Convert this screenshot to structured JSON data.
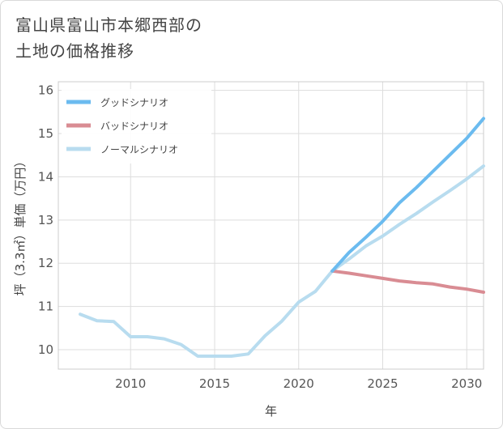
{
  "title_line1": "富山県富山市本郷西部の",
  "title_line2": "土地の価格推移",
  "chart_data": {
    "type": "line",
    "xlabel": "年",
    "ylabel": "坪（3.3㎡）単価（万円）",
    "xlim": [
      2005.7,
      2031
    ],
    "ylim": [
      9.55,
      16.2
    ],
    "xticks": [
      2010,
      2015,
      2020,
      2025,
      2030
    ],
    "yticks": [
      10,
      11,
      12,
      13,
      14,
      15,
      16
    ],
    "grid": true,
    "legend_position": "top-left",
    "series": [
      {
        "name": "グッドシナリオ",
        "color": "#6bbbef",
        "x": [
          2022,
          2023,
          2024,
          2025,
          2026,
          2027,
          2028,
          2029,
          2030,
          2031
        ],
        "y": [
          11.82,
          12.25,
          12.6,
          12.97,
          13.4,
          13.75,
          14.13,
          14.51,
          14.89,
          15.35
        ]
      },
      {
        "name": "バッドシナリオ",
        "color": "#d98c93",
        "x": [
          2022,
          2023,
          2024,
          2025,
          2026,
          2027,
          2028,
          2029,
          2030,
          2031
        ],
        "y": [
          11.82,
          11.77,
          11.71,
          11.65,
          11.59,
          11.55,
          11.52,
          11.45,
          11.4,
          11.33
        ]
      },
      {
        "name": "ノーマルシナリオ",
        "color": "#b8dcef",
        "x": [
          2007,
          2008,
          2009,
          2010,
          2011,
          2012,
          2013,
          2014,
          2015,
          2016,
          2017,
          2018,
          2019,
          2020,
          2021,
          2022,
          2023,
          2024,
          2025,
          2026,
          2027,
          2028,
          2029,
          2030,
          2031
        ],
        "y": [
          10.82,
          10.67,
          10.65,
          10.3,
          10.3,
          10.25,
          10.12,
          9.85,
          9.85,
          9.85,
          9.9,
          10.32,
          10.66,
          11.1,
          11.35,
          11.82,
          12.1,
          12.4,
          12.63,
          12.9,
          13.15,
          13.42,
          13.68,
          13.95,
          14.25
        ]
      }
    ]
  }
}
